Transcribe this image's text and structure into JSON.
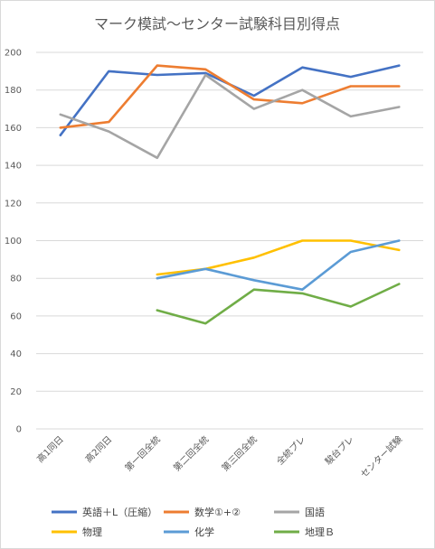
{
  "chart_data": {
    "type": "line",
    "title": "マーク模試～センター試験科目別得点",
    "xlabel": "",
    "ylabel": "",
    "ylim": [
      0,
      200
    ],
    "ytick_step": 20,
    "y_ticks": [
      "0",
      "20",
      "40",
      "60",
      "80",
      "100",
      "120",
      "140",
      "160",
      "180",
      "200"
    ],
    "grid": true,
    "legend_position": "bottom",
    "categories": [
      "高1同日",
      "高2同日",
      "第一回全統",
      "第二回全統",
      "第三回全統",
      "全統プレ",
      "駿台プレ",
      "センター試験"
    ],
    "series": [
      {
        "name": "英語＋L（圧縮）",
        "color": "#4472c4",
        "values": [
          156,
          190,
          188,
          189,
          177,
          192,
          187,
          193
        ]
      },
      {
        "name": "数学①+②",
        "color": "#ed7d31",
        "values": [
          160,
          163,
          193,
          191,
          175,
          173,
          182,
          182
        ]
      },
      {
        "name": "国語",
        "color": "#a5a5a5",
        "values": [
          167,
          158,
          144,
          188,
          170,
          180,
          166,
          171
        ]
      },
      {
        "name": "物理",
        "color": "#ffc000",
        "values": [
          null,
          null,
          82,
          85,
          91,
          100,
          100,
          95
        ]
      },
      {
        "name": "化学",
        "color": "#5b9bd5",
        "values": [
          null,
          null,
          80,
          85,
          79,
          74,
          94,
          100
        ]
      },
      {
        "name": "地理Ｂ",
        "color": "#70ad47",
        "values": [
          null,
          null,
          63,
          56,
          74,
          72,
          65,
          77
        ]
      }
    ]
  }
}
